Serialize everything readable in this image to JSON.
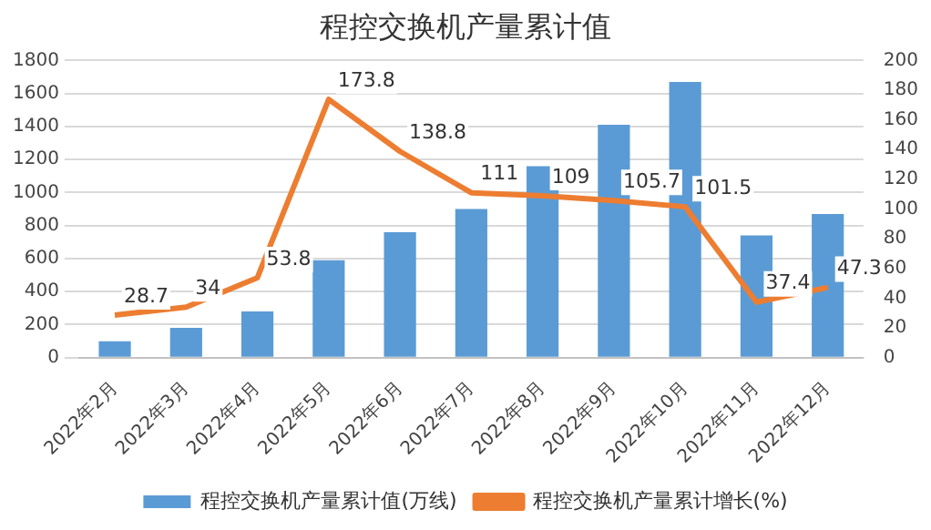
{
  "chart_data": {
    "type": "bar",
    "title": "程控交换机产量累计值",
    "categories": [
      "2022年2月",
      "2022年3月",
      "2022年4月",
      "2022年5月",
      "2022年6月",
      "2022年7月",
      "2022年8月",
      "2022年9月",
      "2022年10月",
      "2022年11月",
      "2022年12月"
    ],
    "series": [
      {
        "name": "程控交换机产量累计值(万线)",
        "color": "#5b9bd5",
        "values": [
          100,
          180,
          280,
          590,
          760,
          900,
          1160,
          1410,
          1670,
          740,
          870
        ]
      },
      {
        "name": "程控交换机产量累计增长(%)",
        "type": "line",
        "axis": "y2",
        "color": "#ed7d31",
        "values": [
          28.7,
          34,
          53.8,
          173.8,
          138.8,
          111,
          109,
          105.7,
          101.5,
          37.4,
          47.3
        ],
        "value_labels": [
          "28.7",
          "34",
          "53.8",
          "173.8",
          "138.8",
          "111",
          "109",
          "105.7",
          "101.5",
          "37.4",
          "47.3"
        ]
      }
    ],
    "ylim": [
      0,
      1800
    ],
    "yticks": [
      0,
      200,
      400,
      600,
      800,
      1000,
      1200,
      1400,
      1600,
      1800
    ],
    "y2lim": [
      0,
      200
    ],
    "y2ticks": [
      0,
      20,
      40,
      60,
      80,
      100,
      120,
      140,
      160,
      180,
      200
    ],
    "grid": "y",
    "legend": "bottom",
    "marker": "none"
  }
}
